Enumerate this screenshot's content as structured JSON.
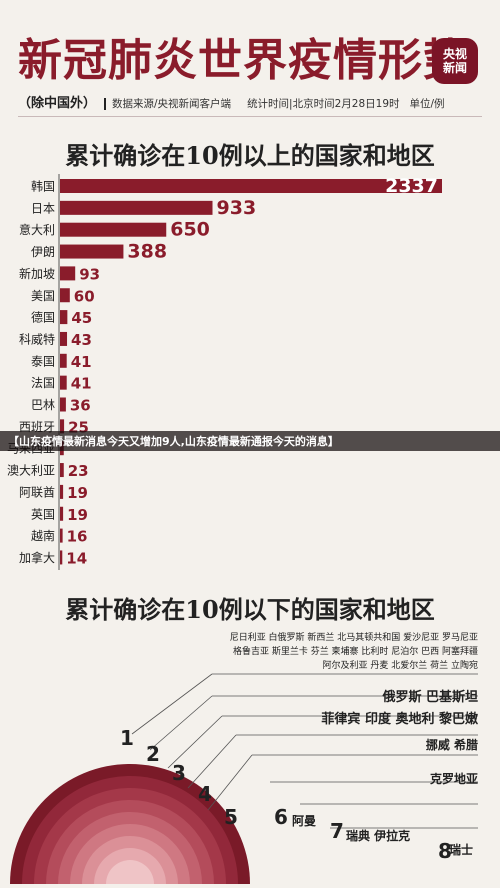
{
  "header": {
    "title": "新冠肺炎世界疫情形势",
    "logo_line1": "央视",
    "logo_line2": "新闻",
    "exclude": "（除中国外）",
    "source": "数据来源/央视新闻客户端",
    "time": "统计时间|北京时间2月28日19时",
    "unit": "单位/例"
  },
  "section1_title": "累计确诊在10例以上的国家和地区",
  "section2_title": "累计确诊在10例以下的国家和地区",
  "overlay_text": "【山东疫情最新消息今天又增加9人,山东疫情最新通报今天的消息】",
  "colors": {
    "bar": "#8a1c2b",
    "title": "#8a1c2b",
    "logo": "#7b1426"
  },
  "chart_data": [
    {
      "type": "bar",
      "orientation": "horizontal",
      "categories": [
        "韩国",
        "日本",
        "意大利",
        "伊朗",
        "新加坡",
        "美国",
        "德国",
        "科威特",
        "泰国",
        "法国",
        "巴林",
        "西班牙",
        "马来西亚",
        "澳大利亚",
        "阿联酋",
        "英国",
        "越南",
        "加拿大"
      ],
      "values": [
        2337,
        933,
        650,
        388,
        93,
        60,
        45,
        43,
        41,
        41,
        36,
        25,
        23,
        23,
        19,
        19,
        16,
        14
      ],
      "labels": [
        "2337",
        "933",
        "650",
        "388",
        "93",
        "60",
        "45",
        "43",
        "41",
        "41",
        "36",
        "25",
        "",
        "23",
        "19",
        "19",
        "16",
        "14"
      ],
      "xlim": [
        0,
        2337
      ]
    },
    {
      "type": "table",
      "rows": [
        {
          "count": "",
          "countries": [
            "尼日利亚 白俄罗斯 新西兰 北马其顿共和国 爱沙尼亚 罗马尼亚",
            "格鲁吉亚 斯里兰卡 芬兰 柬埔寨 比利时 尼泊尔 巴西 阿塞拜疆",
            "阿尔及利亚 丹麦 北爱尔兰 荷兰 立陶宛"
          ]
        },
        {
          "count": "1",
          "countries": [
            "俄罗斯 巴基斯坦"
          ]
        },
        {
          "count": "2",
          "countries": [
            "菲律宾 印度 奥地利 黎巴嫩"
          ]
        },
        {
          "count": "3",
          "countries": [
            "挪威 希腊"
          ]
        },
        {
          "count": "4",
          "countries": [
            "克罗地亚"
          ]
        },
        {
          "count": "5",
          "countries": []
        },
        {
          "count": "6",
          "countries": [
            "阿曼"
          ]
        },
        {
          "count": "7",
          "countries": [
            "瑞典 伊拉克"
          ]
        },
        {
          "count": "8",
          "countries": [
            "瑞士"
          ]
        }
      ]
    }
  ]
}
